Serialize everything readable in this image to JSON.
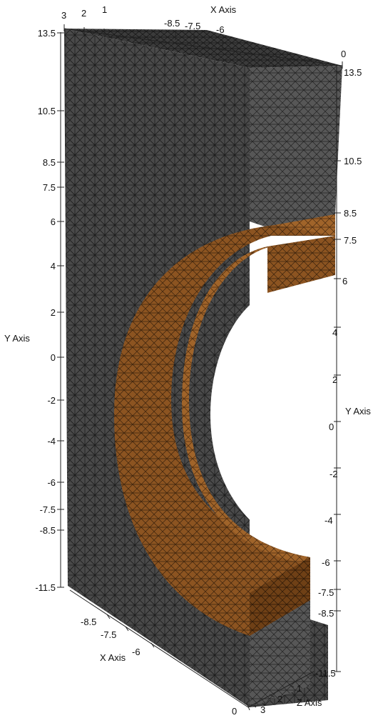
{
  "viewport": {
    "background": "#ffffff",
    "colors": {
      "mesh_face_front": "#4a4a4a",
      "mesh_face_top": "#3a3a3a",
      "mesh_face_side": "#555555",
      "mesh_edge": "#1a1a1a",
      "insert_face_front": "#8a5320",
      "insert_face_inner": "#9b5e22",
      "insert_face_top": "#a86a2a",
      "insert_face_dark": "#6e3f14"
    }
  },
  "axes": {
    "x_axis_top": {
      "title": "X Axis",
      "ticks": [
        "3",
        "2",
        "1",
        "-8.5",
        "-7.5",
        "-6",
        "0"
      ]
    },
    "x_axis_bottom": {
      "title": "X Axis",
      "ticks": [
        "-8.5",
        "-7.5",
        "-6",
        "0"
      ]
    },
    "y_axis_left": {
      "title": "Y Axis",
      "ticks": [
        "13.5",
        "10.5",
        "8.5",
        "7.5",
        "6",
        "4",
        "2",
        "0",
        "-2",
        "-4",
        "-6",
        "-7.5",
        "-8.5",
        "-11.5"
      ]
    },
    "y_axis_right": {
      "title": "Y Axis",
      "ticks": [
        "13.5",
        "10.5",
        "8.5",
        "7.5",
        "6",
        "4",
        "2",
        "0",
        "-2",
        "-4",
        "-6",
        "-7.5",
        "-8.5",
        "-11.5"
      ]
    },
    "z_axis": {
      "title": "Z Axis",
      "ticks": [
        "1",
        "2",
        "3"
      ]
    }
  }
}
